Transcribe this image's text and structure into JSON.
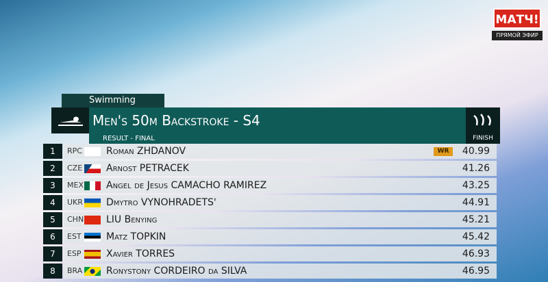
{
  "broadcaster": {
    "logo": "МАТЧ!",
    "status": "ПРЯМОЙ ЭФИР"
  },
  "header": {
    "sport": "Swimming",
    "event": "Men's 50m Backstroke - S4",
    "stage": "RESULT - FINAL",
    "column": "FINISH"
  },
  "table": {
    "rows": [
      {
        "rank": "1",
        "country": "RPC",
        "name": "Roman ZHDANOV",
        "record": "WR",
        "time": "40.99"
      },
      {
        "rank": "2",
        "country": "CZE",
        "name": "Arnost PETRACEK",
        "time": "41.26"
      },
      {
        "rank": "3",
        "country": "MEX",
        "name": "Angel de Jesus CAMACHO RAMIREZ",
        "time": "43.25"
      },
      {
        "rank": "4",
        "country": "UKR",
        "name": "Dmytro VYNOHRADETS'",
        "time": "44.91"
      },
      {
        "rank": "5",
        "country": "CHN",
        "name": "LIU Benying",
        "time": "45.21"
      },
      {
        "rank": "6",
        "country": "EST",
        "name": "Matz TOPKIN",
        "time": "45.42"
      },
      {
        "rank": "7",
        "country": "ESP",
        "name": "Xavier TORRES",
        "time": "46.93"
      },
      {
        "rank": "8",
        "country": "BRA",
        "name": "Ronystony CORDEIRO da SILVA",
        "time": "46.95"
      }
    ]
  }
}
